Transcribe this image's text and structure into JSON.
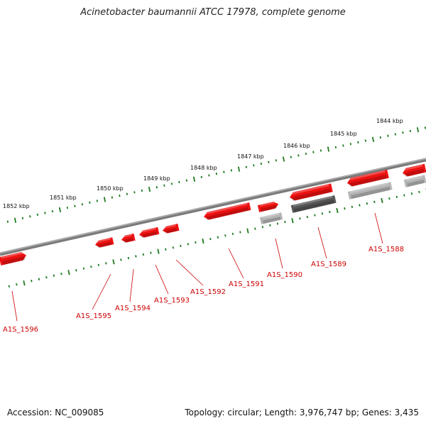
{
  "title": "Acinetobacter baumannii ATCC 17978, complete genome",
  "footer": {
    "accession": "Accession: NC_009085",
    "summary": "Topology: circular; Length: 3,976,747 bp; Genes: 3,435"
  },
  "colors": {
    "gene_forward": "#ee1111",
    "gene_gray": "#b5b5b5",
    "gene_dark": "#555555",
    "backbone": "#808080",
    "ticks": "#1f7a1f",
    "labels": "#cc0000"
  },
  "scale_labels": [
    "1852 kbp",
    "1851 kbp",
    "1850 kbp",
    "1849 kbp",
    "1848 kbp",
    "1847 kbp",
    "1846 kbp",
    "1845 kbp",
    "1844 kbp"
  ],
  "genes": [
    {
      "id": "A1S_1596",
      "color": "red"
    },
    {
      "id": "A1S_1595",
      "color": "red"
    },
    {
      "id": "A1S_1594",
      "color": "red"
    },
    {
      "id": "A1S_1593",
      "color": "red"
    },
    {
      "id": "A1S_1592",
      "color": "red"
    },
    {
      "id": "A1S_1591",
      "color": "red"
    },
    {
      "id": "A1S_1590",
      "color": "red"
    },
    {
      "id": "A1S_1589",
      "color": "red"
    },
    {
      "id": "A1S_1588",
      "color": "red"
    }
  ]
}
